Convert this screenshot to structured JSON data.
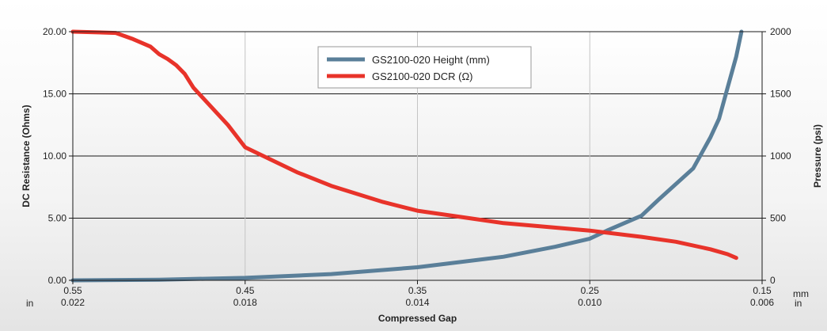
{
  "chart_data": {
    "type": "line",
    "title": "",
    "xlabel": "Compressed Gap",
    "ylabel_left": "DC Resistance (Ohms)",
    "ylabel_right": "Pressure (psi)",
    "x_unit_mm": "mm",
    "x_unit_in": "in",
    "xlim": [
      0.55,
      0.15
    ],
    "ylim_left": [
      0,
      20
    ],
    "ylim_right": [
      0,
      2000
    ],
    "x_ticks_mm": [
      "0.55",
      "0.45",
      "0.35",
      "0.25",
      "0.15"
    ],
    "x_ticks_mm_values": [
      0.55,
      0.45,
      0.35,
      0.25,
      0.15
    ],
    "x_ticks_in": [
      "0.022",
      "0.018",
      "0.014",
      "0.010",
      "0.006"
    ],
    "y_ticks_left": [
      "0.00",
      "5.00",
      "10.00",
      "15.00",
      "20.00"
    ],
    "y_ticks_left_values": [
      0,
      5,
      10,
      15,
      20
    ],
    "y_ticks_right": [
      "0",
      "500",
      "1000",
      "1500",
      "2000"
    ],
    "y_ticks_right_values": [
      0,
      500,
      1000,
      1500,
      2000
    ],
    "grid": true,
    "legend_position": "top-center",
    "series": [
      {
        "name": "GS2100-020 Height (mm)",
        "axis": "right",
        "color": "#5a7f99",
        "x": [
          0.55,
          0.5,
          0.45,
          0.4,
          0.35,
          0.3,
          0.27,
          0.25,
          0.24,
          0.22,
          0.21,
          0.19,
          0.18,
          0.175,
          0.17,
          0.165,
          0.162
        ],
        "y": [
          0,
          5,
          20,
          50,
          105,
          190,
          270,
          335,
          400,
          520,
          650,
          900,
          1150,
          1300,
          1550,
          1800,
          2000
        ]
      },
      {
        "name": "GS2100-020 DCR (Ω)",
        "axis": "left",
        "color": "#e8332a",
        "x": [
          0.55,
          0.525,
          0.515,
          0.505,
          0.5,
          0.495,
          0.49,
          0.485,
          0.48,
          0.46,
          0.45,
          0.42,
          0.4,
          0.37,
          0.35,
          0.32,
          0.3,
          0.25,
          0.22,
          0.2,
          0.18,
          0.17,
          0.165
        ],
        "y": [
          20.0,
          19.9,
          19.4,
          18.8,
          18.2,
          17.8,
          17.3,
          16.6,
          15.5,
          12.5,
          10.7,
          8.7,
          7.6,
          6.3,
          5.6,
          5.0,
          4.6,
          4.0,
          3.5,
          3.1,
          2.5,
          2.1,
          1.8
        ]
      }
    ]
  }
}
